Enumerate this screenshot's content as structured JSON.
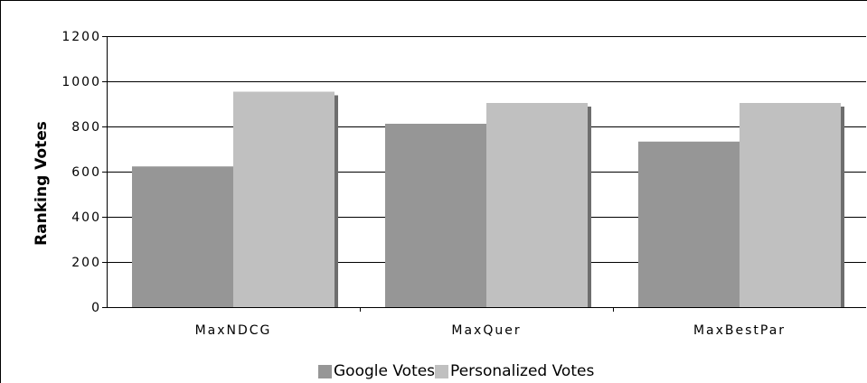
{
  "chart_data": {
    "type": "bar",
    "categories": [
      "MaxNDCG",
      "MaxQuer",
      "MaxBestPar"
    ],
    "series": [
      {
        "name": "Google Votes",
        "values": [
          623,
          812,
          733
        ],
        "color": "#969696"
      },
      {
        "name": "Personalized Votes",
        "values": [
          954,
          904,
          904
        ],
        "color": "#c0c0c0"
      }
    ],
    "title": "",
    "xlabel": "",
    "ylabel": "Ranking Votes",
    "ylim": [
      0,
      1200
    ],
    "yticks": [
      0,
      200,
      400,
      600,
      800,
      1000,
      1200
    ],
    "ytick_labels": [
      "0",
      "200",
      "400",
      "600",
      "800",
      "1000",
      "1200"
    ],
    "grid": true,
    "legend": "bottom",
    "shadow_color": "#6e6e6e"
  }
}
